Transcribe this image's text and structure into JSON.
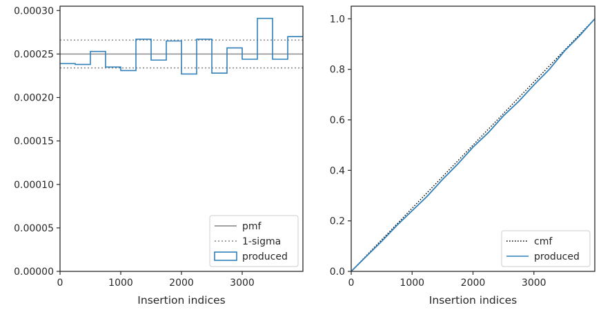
{
  "chart_data": [
    {
      "type": "histogram",
      "xlabel": "Insertion indices",
      "ylabel": "",
      "xlim": [
        0,
        4000
      ],
      "ylim": [
        0,
        0.000305
      ],
      "xticks": [
        0,
        1000,
        2000,
        3000
      ],
      "xtick_labels": [
        "0",
        "1000",
        "2000",
        "3000"
      ],
      "yticks": [
        0,
        5e-05,
        0.0001,
        0.00015,
        0.0002,
        0.00025,
        0.0003
      ],
      "ytick_labels": [
        "0.00000",
        "0.00005",
        "0.00010",
        "0.00015",
        "0.00020",
        "0.00025",
        "0.00030"
      ],
      "legend_position": "lower-right",
      "series": [
        {
          "name": "pmf",
          "style": "solid",
          "color": "#808080",
          "kind": "hline",
          "y": 0.00025
        },
        {
          "name": "1-sigma",
          "style": "dotted",
          "color": "#808080",
          "kind": "hlines",
          "y": [
            0.000234,
            0.000266
          ]
        },
        {
          "name": "produced",
          "style": "step",
          "color": "#2e7fb8",
          "kind": "step",
          "bin_edges": [
            0,
            250,
            500,
            750,
            1000,
            1250,
            1500,
            1750,
            2000,
            2250,
            2500,
            2750,
            3000,
            3250,
            3500,
            3750,
            4000
          ],
          "values": [
            0.000239,
            0.000238,
            0.000253,
            0.000235,
            0.000231,
            0.000267,
            0.000243,
            0.000265,
            0.000227,
            0.000267,
            0.000228,
            0.000257,
            0.000244,
            0.000291,
            0.000244,
            0.00027
          ]
        }
      ]
    },
    {
      "type": "line",
      "xlabel": "Insertion indices",
      "ylabel": "",
      "xlim": [
        0,
        4000
      ],
      "ylim": [
        0,
        1.05
      ],
      "xticks": [
        0,
        1000,
        2000,
        3000
      ],
      "xtick_labels": [
        "0",
        "1000",
        "2000",
        "3000"
      ],
      "yticks": [
        0,
        0.2,
        0.4,
        0.6,
        0.8,
        1.0
      ],
      "ytick_labels": [
        "0.0",
        "0.2",
        "0.4",
        "0.6",
        "0.8",
        "1.0"
      ],
      "legend_position": "lower-right",
      "series": [
        {
          "name": "cmf",
          "style": "dotted",
          "color": "#000000",
          "x": [
            0,
            4000
          ],
          "y": [
            0,
            1.0
          ]
        },
        {
          "name": "produced",
          "style": "solid",
          "color": "#2e7fb8",
          "x": [
            0,
            250,
            500,
            750,
            1000,
            1250,
            1500,
            1750,
            2000,
            2250,
            2500,
            2750,
            3000,
            3250,
            3500,
            3750,
            4000
          ],
          "y": [
            0,
            0.06,
            0.119,
            0.182,
            0.24,
            0.298,
            0.364,
            0.425,
            0.492,
            0.549,
            0.616,
            0.673,
            0.738,
            0.799,
            0.872,
            0.933,
            1.0
          ]
        }
      ]
    }
  ]
}
